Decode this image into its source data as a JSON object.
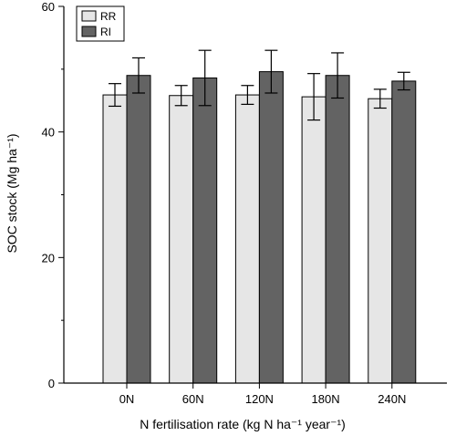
{
  "chart_data": {
    "type": "bar",
    "xlabel": "N fertilisation rate (kg N ha⁻¹ year⁻¹)",
    "ylabel": "SOC stock (Mg ha⁻¹)",
    "categories": [
      "0N",
      "60N",
      "120N",
      "180N",
      "240N"
    ],
    "ylim": [
      0,
      60
    ],
    "yticks": [
      0,
      20,
      40,
      60
    ],
    "grid": false,
    "legend_position": "top-left",
    "series": [
      {
        "name": "RR",
        "color": "#e6e6e6",
        "values": [
          45.9,
          45.8,
          45.9,
          45.6,
          45.3
        ],
        "errors": [
          1.8,
          1.6,
          1.5,
          3.7,
          1.5
        ]
      },
      {
        "name": "RI",
        "color": "#636363",
        "values": [
          49.0,
          48.6,
          49.6,
          49.0,
          48.1
        ],
        "errors": [
          2.8,
          4.4,
          3.4,
          3.6,
          1.4
        ]
      }
    ]
  }
}
